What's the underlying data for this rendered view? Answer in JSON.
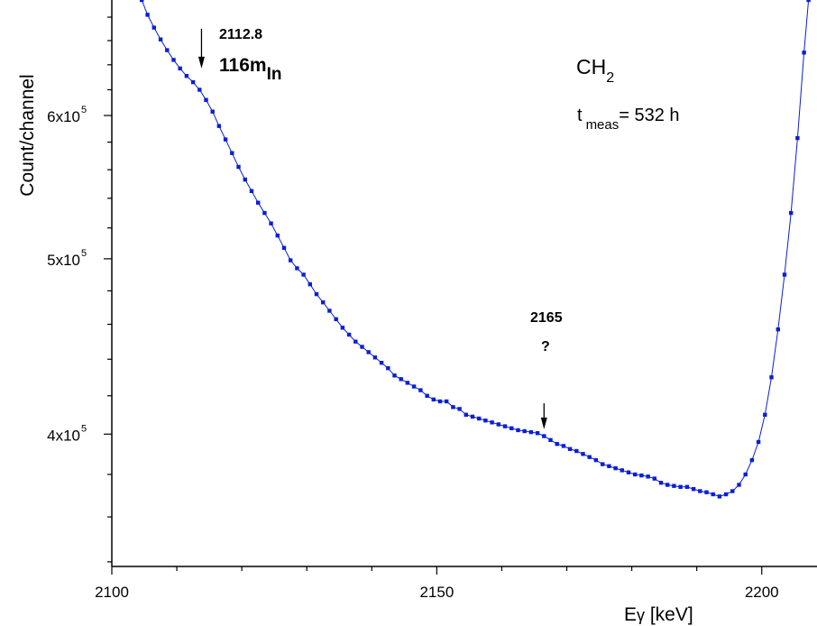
{
  "chart_data": {
    "type": "line",
    "xlabel_main": "E",
    "xlabel_sub": "γ",
    "xlabel_rest": " [keV]",
    "ylabel": "Count/channel",
    "xlim": [
      2100,
      2208.5
    ],
    "ylim": [
      338000,
      695000
    ],
    "y_scale": "log",
    "grid": false,
    "x_ticks": [
      {
        "value": 2100,
        "label": "2100"
      },
      {
        "value": 2150,
        "label": "2150"
      },
      {
        "value": 2200,
        "label": "2200"
      }
    ],
    "y_ticks": [
      {
        "value": 400000,
        "base": "4x10",
        "exp": "5"
      },
      {
        "value": 500000,
        "base": "5x10",
        "exp": "5"
      },
      {
        "value": 600000,
        "base": "6x10",
        "exp": "5"
      }
    ],
    "series": [
      {
        "color": "#0a1ed6",
        "marker": "square",
        "points": [
          [
            2104.6,
            695000
          ],
          [
            2105.5,
            682000
          ],
          [
            2106.5,
            671000
          ],
          [
            2107.5,
            661000
          ],
          [
            2108.5,
            652000
          ],
          [
            2109.5,
            644000
          ],
          [
            2110.5,
            637000
          ],
          [
            2111.5,
            631000
          ],
          [
            2112.5,
            626000
          ],
          [
            2113.5,
            620000
          ],
          [
            2114.5,
            612000
          ],
          [
            2115.5,
            603000
          ],
          [
            2116.5,
            592000
          ],
          [
            2117.5,
            582000
          ],
          [
            2118.5,
            572000
          ],
          [
            2119.5,
            562000
          ],
          [
            2120.5,
            553000
          ],
          [
            2121.5,
            545000
          ],
          [
            2122.5,
            537000
          ],
          [
            2123.5,
            530000
          ],
          [
            2124.5,
            523000
          ],
          [
            2125.5,
            515000
          ],
          [
            2126.5,
            507000
          ],
          [
            2127.5,
            499000
          ],
          [
            2128.5,
            494000
          ],
          [
            2129.5,
            490000
          ],
          [
            2130.5,
            484000
          ],
          [
            2131.5,
            478000
          ],
          [
            2132.5,
            473000
          ],
          [
            2133.5,
            468000
          ],
          [
            2134.5,
            463000
          ],
          [
            2135.5,
            458000
          ],
          [
            2136.5,
            454000
          ],
          [
            2137.5,
            450000
          ],
          [
            2138.5,
            447000
          ],
          [
            2139.5,
            444000
          ],
          [
            2140.5,
            441000
          ],
          [
            2141.5,
            438000
          ],
          [
            2142.5,
            435000
          ],
          [
            2143.5,
            431000
          ],
          [
            2144.5,
            429000
          ],
          [
            2145.5,
            427000
          ],
          [
            2146.5,
            425000
          ],
          [
            2147.5,
            423000
          ],
          [
            2148.5,
            420000
          ],
          [
            2149.5,
            418000
          ],
          [
            2150.5,
            417000
          ],
          [
            2151.5,
            417000
          ],
          [
            2152.5,
            414000
          ],
          [
            2153.5,
            413000
          ],
          [
            2154.5,
            410000
          ],
          [
            2155.5,
            409000
          ],
          [
            2156.5,
            408000
          ],
          [
            2157.5,
            407000
          ],
          [
            2158.5,
            406000
          ],
          [
            2159.5,
            405000
          ],
          [
            2160.5,
            404000
          ],
          [
            2161.5,
            403000
          ],
          [
            2162.5,
            402000
          ],
          [
            2163.5,
            401500
          ],
          [
            2164.5,
            401000
          ],
          [
            2165.5,
            400500
          ],
          [
            2166.5,
            399000
          ],
          [
            2167.5,
            397000
          ],
          [
            2168.5,
            395000
          ],
          [
            2169.5,
            394000
          ],
          [
            2170.5,
            392500
          ],
          [
            2171.5,
            391500
          ],
          [
            2172.5,
            390000
          ],
          [
            2173.5,
            388500
          ],
          [
            2174.5,
            387000
          ],
          [
            2175.5,
            385000
          ],
          [
            2176.5,
            384000
          ],
          [
            2177.5,
            383000
          ],
          [
            2178.5,
            382000
          ],
          [
            2179.5,
            381000
          ],
          [
            2180.5,
            380000
          ],
          [
            2181.5,
            379500
          ],
          [
            2182.5,
            379000
          ],
          [
            2183.5,
            378000
          ],
          [
            2184.5,
            376000
          ],
          [
            2185.5,
            375000
          ],
          [
            2186.5,
            374500
          ],
          [
            2187.5,
            374000
          ],
          [
            2188.5,
            374000
          ],
          [
            2189.5,
            373000
          ],
          [
            2190.5,
            372000
          ],
          [
            2191.5,
            371500
          ],
          [
            2192.5,
            370500
          ],
          [
            2193.5,
            369500
          ],
          [
            2194.5,
            370500
          ],
          [
            2195.5,
            372000
          ],
          [
            2196.5,
            375000
          ],
          [
            2197.5,
            380000
          ],
          [
            2198.5,
            387000
          ],
          [
            2199.5,
            396000
          ],
          [
            2200.5,
            410000
          ],
          [
            2201.5,
            430000
          ],
          [
            2202.5,
            457000
          ],
          [
            2203.5,
            490000
          ],
          [
            2204.5,
            530000
          ],
          [
            2205.5,
            583000
          ],
          [
            2206.5,
            650000
          ],
          [
            2207.2,
            695000
          ]
        ]
      }
    ],
    "annotations": [
      {
        "label": "2112.8",
        "x": 2113.8,
        "y_top": 670000,
        "y_bottom": 637000
      },
      {
        "label": "2165",
        "x": 2166.5,
        "y_top": 416000,
        "y_bottom": 402500
      }
    ]
  },
  "labels": {
    "peak1_energy": "2112.8",
    "peak1_isotope_main": "116m",
    "peak1_isotope_sub": "In",
    "peak2_energy": "2165",
    "peak2_query": "?",
    "sample_main": "CH",
    "sample_sub": "2",
    "tmeas_t": "t",
    "tmeas_sub": "meas",
    "tmeas_rest": "= 532 h"
  },
  "colors": {
    "series": "#0a1ed6",
    "axis": "#000000"
  }
}
